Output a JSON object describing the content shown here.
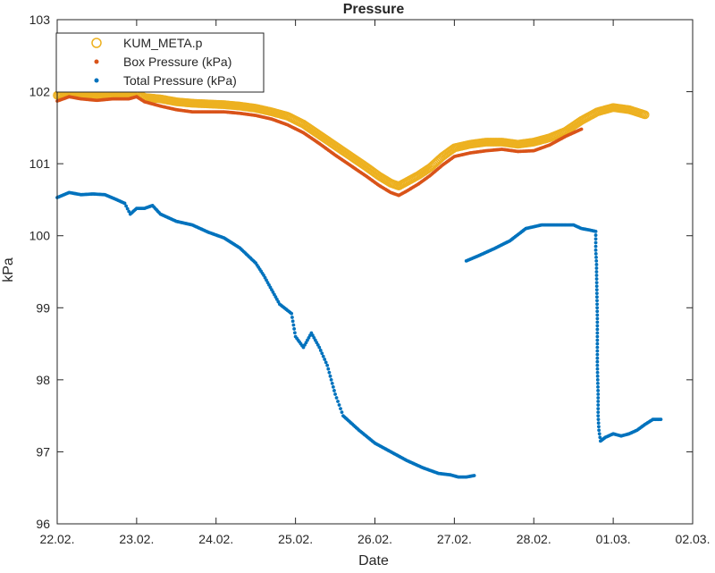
{
  "chart_data": {
    "type": "scatter",
    "title": "Pressure",
    "xlabel": "Date",
    "ylabel": "kPa",
    "x_ticks": [
      "22.02.",
      "23.02.",
      "24.02.",
      "25.02.",
      "26.02.",
      "27.02.",
      "28.02.",
      "01.03.",
      "02.03."
    ],
    "xlim": [
      0,
      8
    ],
    "x_unit": "days from 22.02.",
    "ylim": [
      96,
      103
    ],
    "y_ticks": [
      96,
      97,
      98,
      99,
      100,
      101,
      102,
      103
    ],
    "grid": false,
    "legend_position": "top-left",
    "series": [
      {
        "name": "KUM_META.p",
        "color": "#EDB120",
        "marker": "circle",
        "points": [
          [
            0.0,
            101.95
          ],
          [
            0.15,
            102.0
          ],
          [
            0.3,
            101.98
          ],
          [
            0.5,
            101.96
          ],
          [
            0.7,
            101.97
          ],
          [
            0.9,
            101.96
          ],
          [
            1.0,
            101.98
          ],
          [
            1.1,
            101.92
          ],
          [
            1.3,
            101.9
          ],
          [
            1.5,
            101.86
          ],
          [
            1.7,
            101.84
          ],
          [
            1.9,
            101.83
          ],
          [
            2.1,
            101.82
          ],
          [
            2.3,
            101.8
          ],
          [
            2.5,
            101.77
          ],
          [
            2.7,
            101.72
          ],
          [
            2.9,
            101.66
          ],
          [
            3.1,
            101.55
          ],
          [
            3.3,
            101.4
          ],
          [
            3.5,
            101.25
          ],
          [
            3.7,
            101.1
          ],
          [
            3.9,
            100.95
          ],
          [
            4.05,
            100.83
          ],
          [
            4.2,
            100.73
          ],
          [
            4.3,
            100.69
          ],
          [
            4.4,
            100.75
          ],
          [
            4.55,
            100.84
          ],
          [
            4.7,
            100.95
          ],
          [
            4.85,
            101.1
          ],
          [
            5.0,
            101.22
          ],
          [
            5.2,
            101.27
          ],
          [
            5.4,
            101.3
          ],
          [
            5.6,
            101.3
          ],
          [
            5.8,
            101.27
          ],
          [
            6.0,
            101.3
          ],
          [
            6.2,
            101.36
          ],
          [
            6.4,
            101.45
          ],
          [
            6.6,
            101.6
          ],
          [
            6.8,
            101.72
          ],
          [
            7.0,
            101.78
          ],
          [
            7.2,
            101.75
          ],
          [
            7.4,
            101.68
          ]
        ]
      },
      {
        "name": "Box Pressure (kPa)",
        "color": "#D95319",
        "marker": "dot",
        "points": [
          [
            0.0,
            101.87
          ],
          [
            0.15,
            101.93
          ],
          [
            0.3,
            101.9
          ],
          [
            0.5,
            101.88
          ],
          [
            0.7,
            101.9
          ],
          [
            0.9,
            101.9
          ],
          [
            1.0,
            101.93
          ],
          [
            1.1,
            101.86
          ],
          [
            1.3,
            101.8
          ],
          [
            1.5,
            101.75
          ],
          [
            1.7,
            101.72
          ],
          [
            1.9,
            101.72
          ],
          [
            2.1,
            101.72
          ],
          [
            2.3,
            101.7
          ],
          [
            2.5,
            101.67
          ],
          [
            2.7,
            101.62
          ],
          [
            2.9,
            101.54
          ],
          [
            3.1,
            101.43
          ],
          [
            3.3,
            101.28
          ],
          [
            3.5,
            101.12
          ],
          [
            3.7,
            100.97
          ],
          [
            3.9,
            100.82
          ],
          [
            4.05,
            100.7
          ],
          [
            4.2,
            100.6
          ],
          [
            4.3,
            100.56
          ],
          [
            4.4,
            100.62
          ],
          [
            4.55,
            100.72
          ],
          [
            4.7,
            100.84
          ],
          [
            4.85,
            100.98
          ],
          [
            5.0,
            101.1
          ],
          [
            5.2,
            101.15
          ],
          [
            5.4,
            101.18
          ],
          [
            5.6,
            101.2
          ],
          [
            5.8,
            101.17
          ],
          [
            6.0,
            101.18
          ],
          [
            6.2,
            101.26
          ],
          [
            6.4,
            101.38
          ],
          [
            6.6,
            101.48
          ]
        ]
      },
      {
        "name": "Total Pressure (kPa)",
        "color": "#0072BD",
        "marker": "dot",
        "points": [
          [
            0.0,
            100.53
          ],
          [
            0.15,
            100.6
          ],
          [
            0.3,
            100.57
          ],
          [
            0.45,
            100.58
          ],
          [
            0.6,
            100.57
          ],
          [
            0.75,
            100.5
          ],
          [
            0.85,
            100.45
          ],
          [
            0.92,
            100.3
          ],
          [
            1.0,
            100.38
          ],
          [
            1.1,
            100.38
          ],
          [
            1.2,
            100.42
          ],
          [
            1.3,
            100.3
          ],
          [
            1.5,
            100.2
          ],
          [
            1.7,
            100.15
          ],
          [
            1.9,
            100.05
          ],
          [
            2.1,
            99.97
          ],
          [
            2.3,
            99.83
          ],
          [
            2.5,
            99.62
          ],
          [
            2.6,
            99.45
          ],
          [
            2.7,
            99.25
          ],
          [
            2.8,
            99.05
          ],
          [
            2.95,
            98.92
          ],
          [
            3.0,
            98.6
          ],
          [
            3.1,
            98.45
          ],
          [
            3.2,
            98.65
          ],
          [
            3.3,
            98.45
          ],
          [
            3.4,
            98.2
          ],
          [
            3.5,
            97.8
          ],
          [
            3.6,
            97.5
          ],
          [
            3.8,
            97.3
          ],
          [
            4.0,
            97.12
          ],
          [
            4.2,
            97.0
          ],
          [
            4.4,
            96.88
          ],
          [
            4.6,
            96.78
          ],
          [
            4.8,
            96.7
          ],
          [
            4.95,
            96.68
          ],
          [
            5.05,
            96.65
          ],
          [
            5.15,
            96.65
          ],
          [
            5.25,
            96.67
          ],
          [
            5.15,
            99.65
          ],
          [
            5.3,
            99.72
          ],
          [
            5.5,
            99.82
          ],
          [
            5.7,
            99.93
          ],
          [
            5.9,
            100.1
          ],
          [
            6.1,
            100.15
          ],
          [
            6.3,
            100.15
          ],
          [
            6.5,
            100.15
          ],
          [
            6.6,
            100.1
          ],
          [
            6.7,
            100.08
          ],
          [
            6.78,
            100.06
          ],
          [
            6.78,
            99.8
          ],
          [
            6.79,
            99.6
          ],
          [
            6.79,
            99.5
          ],
          [
            6.8,
            98.85
          ],
          [
            6.8,
            98.2
          ],
          [
            6.81,
            97.8
          ],
          [
            6.81,
            97.5
          ],
          [
            6.82,
            97.3
          ],
          [
            6.84,
            97.15
          ],
          [
            6.9,
            97.2
          ],
          [
            7.0,
            97.25
          ],
          [
            7.1,
            97.22
          ],
          [
            7.2,
            97.25
          ],
          [
            7.3,
            97.3
          ],
          [
            7.4,
            97.38
          ],
          [
            7.5,
            97.45
          ],
          [
            7.6,
            97.45
          ]
        ]
      }
    ]
  }
}
